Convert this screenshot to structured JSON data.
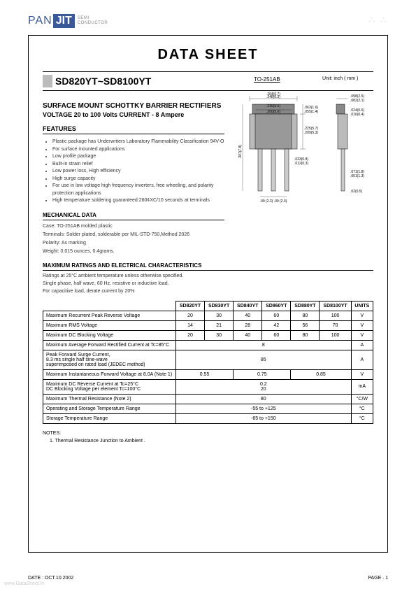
{
  "logo": {
    "pan": "PAN",
    "jit": "JIT",
    "sub1": "SEMI",
    "sub2": "CONDUCTOR"
  },
  "title": "DATA  SHEET",
  "part_number": "SD820YT~SD8100YT",
  "subtitle1": "SURFACE MOUNT SCHOTTKY BARRIER RECTIFIERS",
  "subtitle2": "VOLTAGE 20 to 100 Volts    CURRENT - 8 Ampere",
  "features_header": "FEATURES",
  "features": [
    "Plastic package has Underwriters Laboratory Flammability Classification 94V-O",
    "For surface mounted applications",
    "Low profile package",
    "Built-in strain relief",
    "Low power loss, High efficiency",
    "High surge capacity",
    "For use in low voltage high frequency inverters, free wheeling, and polarity protection applications",
    "High temperature soldering guaranteed:260¢XC/10 seconds at terminals"
  ],
  "mech_header": "MECHANICAL DATA",
  "mech": [
    "Case: TO-251AB molded plastic",
    "Terminals: Solder plated, solderable per MIL-STD-750,Method 2026",
    "Polarity:  As marking",
    "Weight: 0.015 ounces, 0.4grams."
  ],
  "pkg_label": "TO-251AB",
  "unit_label": "Unit: inch ( mm )",
  "dims": {
    "w_top": ".264(6.7)",
    "w_top2": ".248(6.3)",
    "w_inner": ".216(5.5)",
    "w_inner2": ".200(5.0)",
    "h_top": ".063(1.6)",
    "h_top2": ".055(1.4)",
    "h_body": ".225(5.7)",
    "h_body2": ".209(5.3)",
    "h_total": ".307(7.8)",
    "h_total2": ".102(2.6)",
    "pin_w": ".033(0.8)",
    "pin_w2": ".012(0.3)",
    "pitch": ".09 (2.3)",
    "pitch2": ".09 (2.3)",
    "side_w": ".098(2.5)",
    "side_w2": ".082(2.1)",
    "side_t": ".024(0.6)",
    "side_t2": ".016(0.4)",
    "side_h": ".071(1.8)",
    "side_h2": ".051(1.3)",
    "side_b": ".02(0.5)"
  },
  "max_header": "MAXIMUM RATINGS AND ELECTRICAL CHARACTERISTICS",
  "max_notes": [
    "Ratings at 25°C ambient temperature unless otherwise specified.",
    "Single phase, half wave, 60 Hz, resistive or inductive load.",
    "For capacitive load, derate current by 20%"
  ],
  "table": {
    "headers": [
      "",
      "SD820YT",
      "SD830YT",
      "SD840YT",
      "SD860YT",
      "SD880YT",
      "SD8100YT",
      "UNITS"
    ],
    "rows": [
      {
        "param": "Maximum Recurrent Peak Reverse Voltage",
        "vals": [
          "20",
          "30",
          "40",
          "60",
          "80",
          "100"
        ],
        "unit": "V"
      },
      {
        "param": "Maximum RMS Voltage",
        "vals": [
          "14",
          "21",
          "28",
          "42",
          "56",
          "70"
        ],
        "unit": "V"
      },
      {
        "param": "Maximum DC Blocking Voltage",
        "vals": [
          "20",
          "30",
          "40",
          "60",
          "80",
          "100"
        ],
        "unit": "V"
      },
      {
        "param": "Maximum Average Forward Rectified Current at Tc=85°C",
        "span": "8",
        "unit": "A"
      },
      {
        "param": "Peak Forward Surge Current,\n8.3 ms single half sine-wave\nsuperimposed on rated load (JEDEC method)",
        "span": "85",
        "unit": "A"
      },
      {
        "param": "Maximum Instantaneous Forward Voltage at 8.0A (Note 1)",
        "vals3": [
          "0.55",
          "0.75",
          "0.85"
        ],
        "unit": "V"
      },
      {
        "param": "Maximum DC Reverse Current at Tc=25°C\nDC Blocking Voltage per element  Tc=100°C",
        "span2": [
          "0.2",
          "20"
        ],
        "unit": "mA"
      },
      {
        "param": "Maximum Thermal Resistance (Note 2)",
        "span": "80",
        "unit": "°C/W"
      },
      {
        "param": "Operating and Storage Temperature Range",
        "span": "-55 to +125",
        "unit": "°C"
      },
      {
        "param": "Storage Temperature Range",
        "span": "-65 to +150",
        "unit": "°C"
      }
    ]
  },
  "notes_title": "NOTES:",
  "notes": [
    "1. Thermal Resistance Junction to Ambient ."
  ],
  "footer_left": "DATE : OCT.10.2002",
  "footer_right": "PAGE .  1",
  "watermark": "www.DataSheet.in"
}
